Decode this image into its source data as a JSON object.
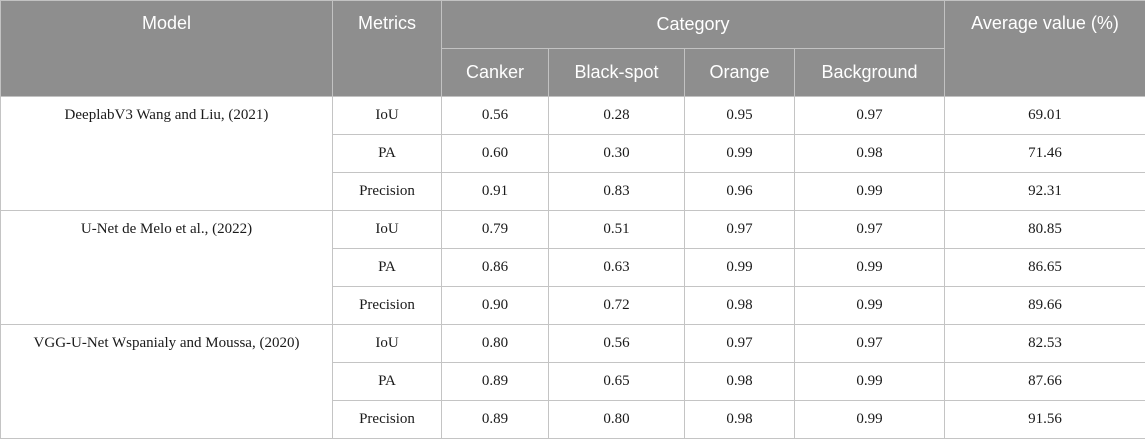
{
  "table": {
    "headers": {
      "model": "Model",
      "metrics": "Metrics",
      "category": "Category",
      "average": "Average value (%)",
      "categories": [
        "Canker",
        "Black-spot",
        "Orange",
        "Background"
      ]
    },
    "groups": [
      {
        "model": "DeeplabV3 Wang and Liu, (2021)",
        "rows": [
          {
            "metric": "IoU",
            "values": [
              "0.56",
              "0.28",
              "0.95",
              "0.97"
            ],
            "average": "69.01"
          },
          {
            "metric": "PA",
            "values": [
              "0.60",
              "0.30",
              "0.99",
              "0.98"
            ],
            "average": "71.46"
          },
          {
            "metric": "Precision",
            "values": [
              "0.91",
              "0.83",
              "0.96",
              "0.99"
            ],
            "average": "92.31"
          }
        ]
      },
      {
        "model": "U-Net de Melo et al., (2022)",
        "rows": [
          {
            "metric": "IoU",
            "values": [
              "0.79",
              "0.51",
              "0.97",
              "0.97"
            ],
            "average": "80.85"
          },
          {
            "metric": "PA",
            "values": [
              "0.86",
              "0.63",
              "0.99",
              "0.99"
            ],
            "average": "86.65"
          },
          {
            "metric": "Precision",
            "values": [
              "0.90",
              "0.72",
              "0.98",
              "0.99"
            ],
            "average": "89.66"
          }
        ]
      },
      {
        "model": "VGG-U-Net Wspanialy and Moussa, (2020)",
        "rows": [
          {
            "metric": "IoU",
            "values": [
              "0.80",
              "0.56",
              "0.97",
              "0.97"
            ],
            "average": "82.53"
          },
          {
            "metric": "PA",
            "values": [
              "0.89",
              "0.65",
              "0.98",
              "0.99"
            ],
            "average": "87.66"
          },
          {
            "metric": "Precision",
            "values": [
              "0.89",
              "0.80",
              "0.98",
              "0.99"
            ],
            "average": "91.56"
          }
        ]
      }
    ]
  }
}
